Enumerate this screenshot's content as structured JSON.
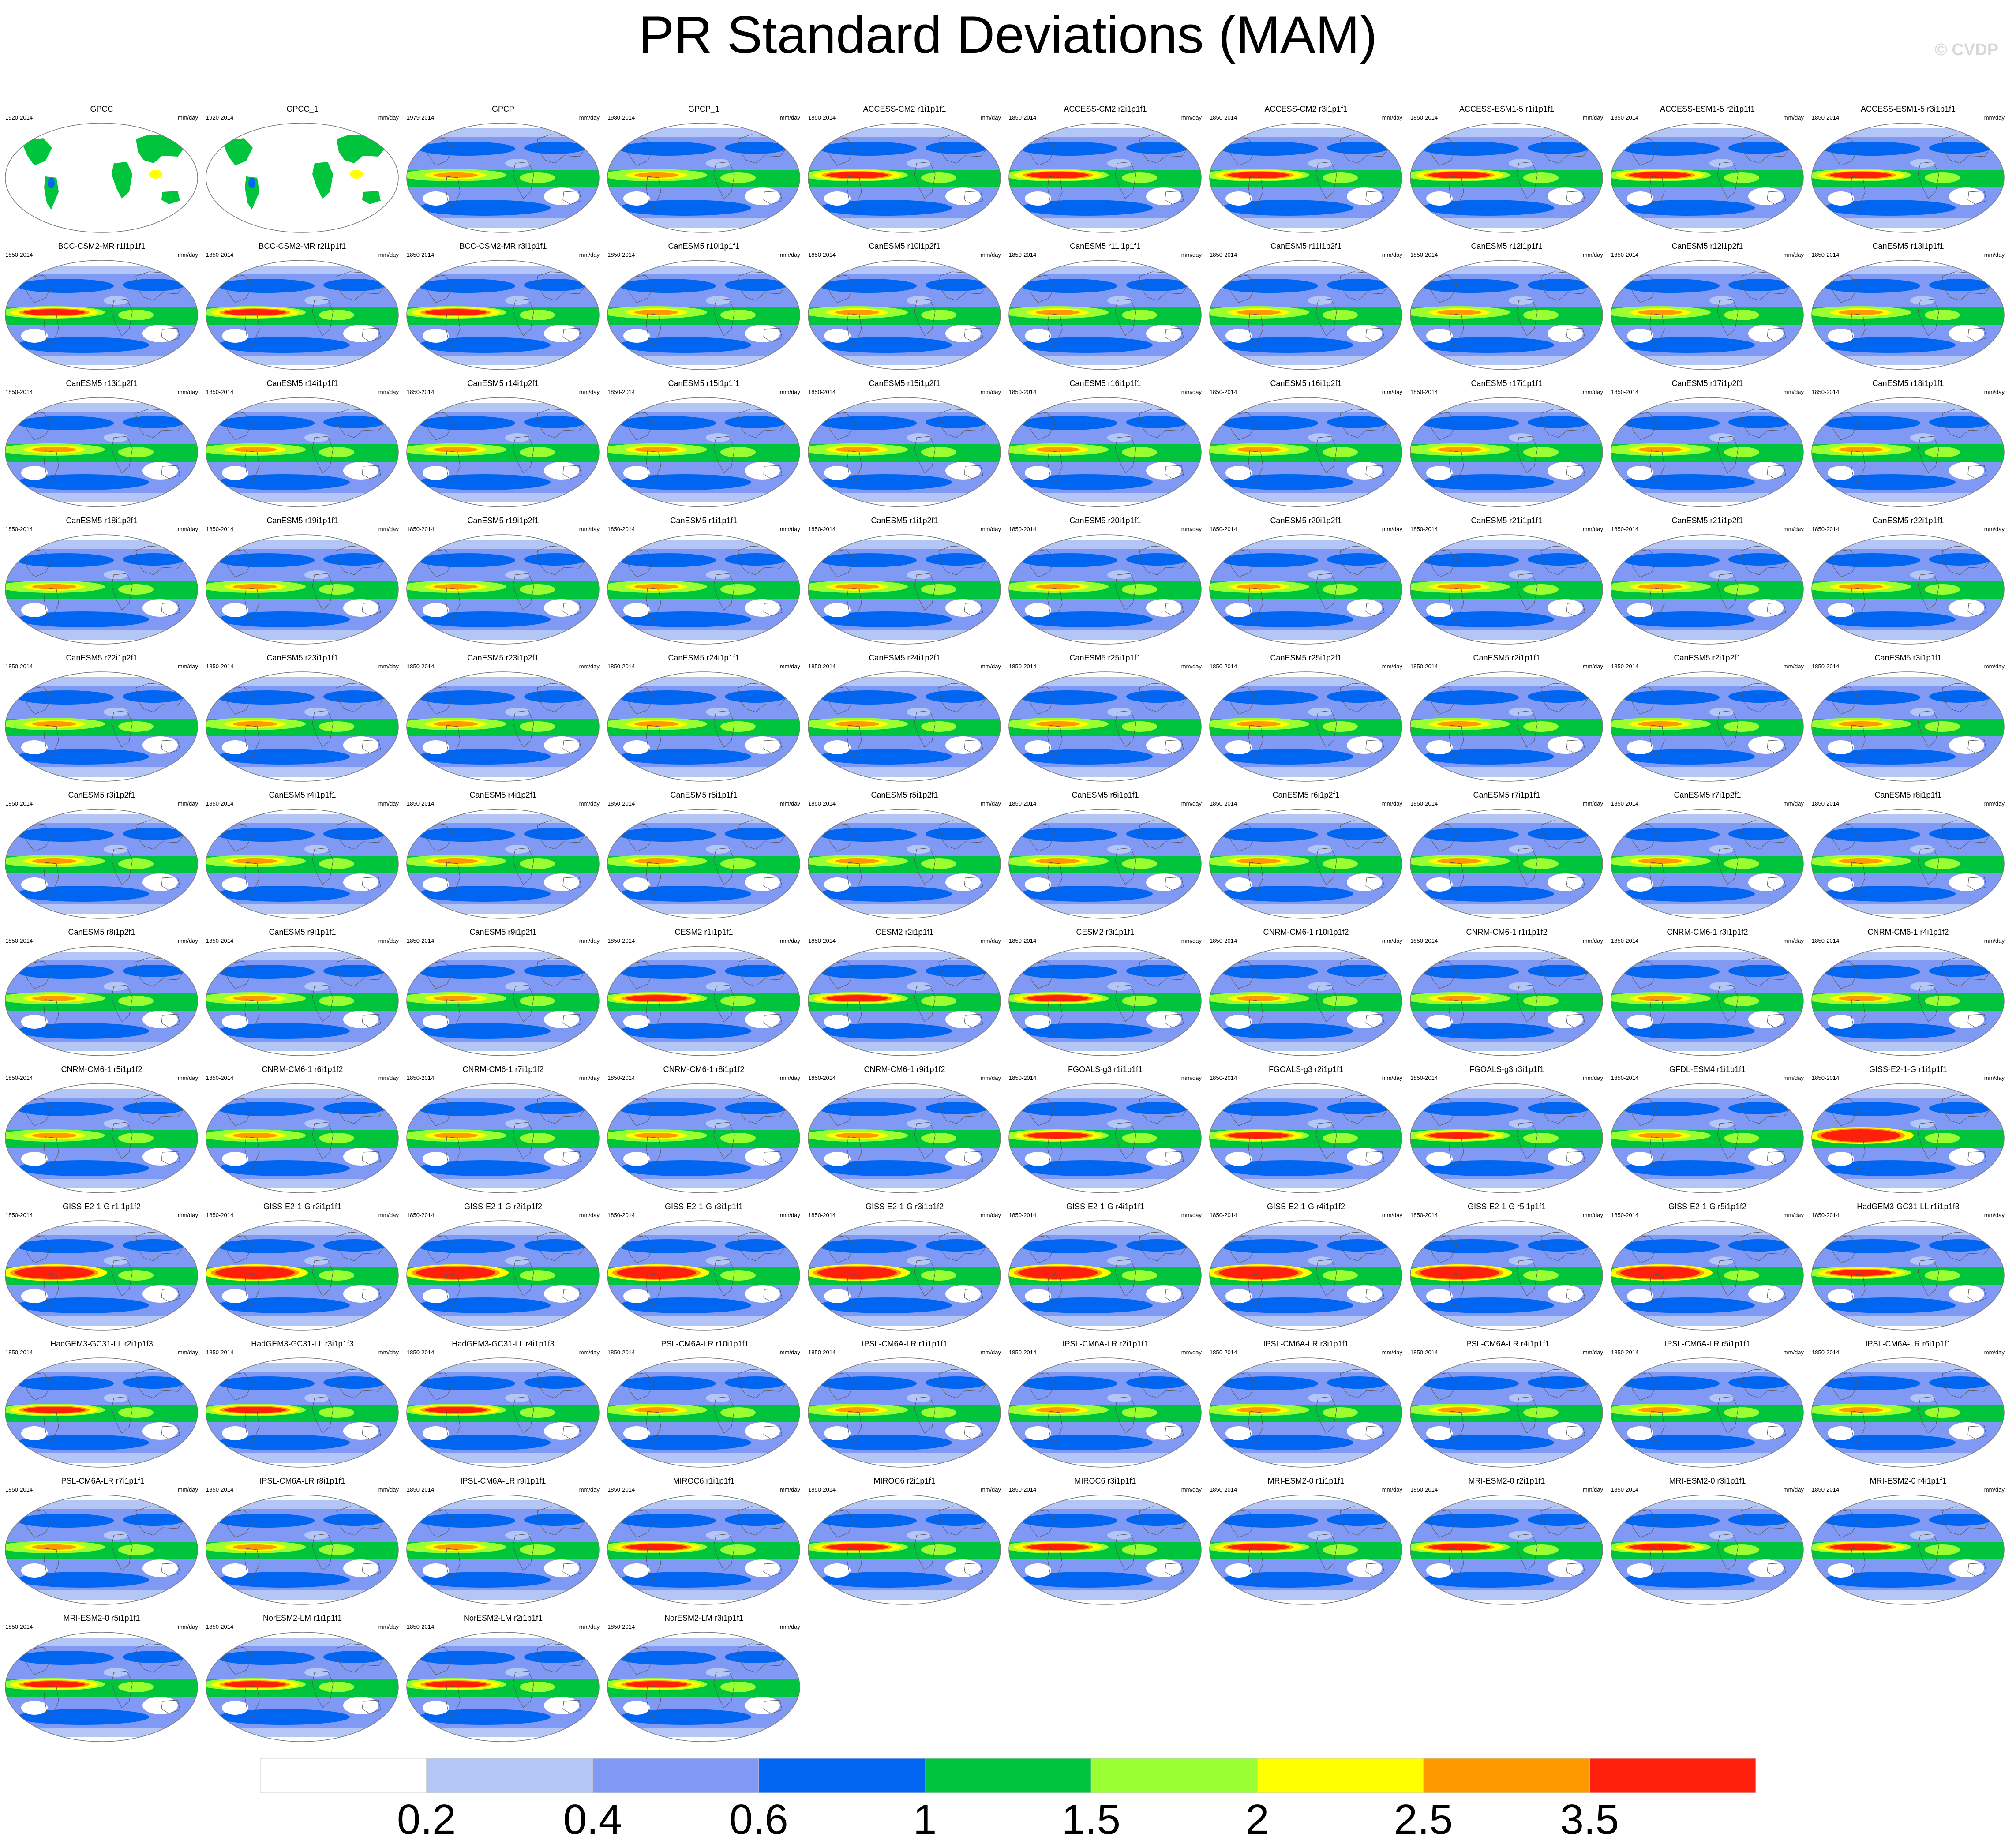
{
  "title": "PR Standard Deviations (MAM)",
  "credit": "© CVDP",
  "units": "mm/day",
  "colorbar": {
    "colors": [
      "#ffffff",
      "#b4c6f5",
      "#7f99f5",
      "#0066f2",
      "#00c43b",
      "#99ff33",
      "#ffff00",
      "#ff9900",
      "#ff1f0a"
    ],
    "ticks": [
      "0.2",
      "0.4",
      "0.6",
      "1",
      "1.5",
      "2",
      "2.5",
      "3.5"
    ]
  },
  "panels": [
    {
      "title": "GPCC",
      "years": "1920-2014",
      "kind": "obs_land"
    },
    {
      "title": "GPCC_1",
      "years": "1920-2014",
      "kind": "obs_land"
    },
    {
      "title": "GPCP",
      "years": "1979-2014",
      "kind": "obs"
    },
    {
      "title": "GPCP_1",
      "years": "1980-2014",
      "kind": "obs"
    },
    {
      "title": "ACCESS-CM2 r1i1p1f1",
      "years": "1850-2014",
      "kind": "model_high"
    },
    {
      "title": "ACCESS-CM2 r2i1p1f1",
      "years": "1850-2014",
      "kind": "model_high"
    },
    {
      "title": "ACCESS-CM2 r3i1p1f1",
      "years": "1850-2014",
      "kind": "model_high"
    },
    {
      "title": "ACCESS-ESM1-5 r1i1p1f1",
      "years": "1850-2014",
      "kind": "model_high"
    },
    {
      "title": "ACCESS-ESM1-5 r2i1p1f1",
      "years": "1850-2014",
      "kind": "model_high"
    },
    {
      "title": "ACCESS-ESM1-5 r3i1p1f1",
      "years": "1850-2014",
      "kind": "model_high"
    },
    {
      "title": "BCC-CSM2-MR r1i1p1f1",
      "years": "1850-2014",
      "kind": "model_high"
    },
    {
      "title": "BCC-CSM2-MR r2i1p1f1",
      "years": "1850-2014",
      "kind": "model_high"
    },
    {
      "title": "BCC-CSM2-MR r3i1p1f1",
      "years": "1850-2014",
      "kind": "model_high"
    },
    {
      "title": "CanESM5 r10i1p1f1",
      "years": "1850-2014",
      "kind": "model"
    },
    {
      "title": "CanESM5 r10i1p2f1",
      "years": "1850-2014",
      "kind": "model"
    },
    {
      "title": "CanESM5 r11i1p1f1",
      "years": "1850-2014",
      "kind": "model"
    },
    {
      "title": "CanESM5 r11i1p2f1",
      "years": "1850-2014",
      "kind": "model"
    },
    {
      "title": "CanESM5 r12i1p1f1",
      "years": "1850-2014",
      "kind": "model"
    },
    {
      "title": "CanESM5 r12i1p2f1",
      "years": "1850-2014",
      "kind": "model"
    },
    {
      "title": "CanESM5 r13i1p1f1",
      "years": "1850-2014",
      "kind": "model"
    },
    {
      "title": "CanESM5 r13i1p2f1",
      "years": "1850-2014",
      "kind": "model"
    },
    {
      "title": "CanESM5 r14i1p1f1",
      "years": "1850-2014",
      "kind": "model"
    },
    {
      "title": "CanESM5 r14i1p2f1",
      "years": "1850-2014",
      "kind": "model"
    },
    {
      "title": "CanESM5 r15i1p1f1",
      "years": "1850-2014",
      "kind": "model"
    },
    {
      "title": "CanESM5 r15i1p2f1",
      "years": "1850-2014",
      "kind": "model"
    },
    {
      "title": "CanESM5 r16i1p1f1",
      "years": "1850-2014",
      "kind": "model"
    },
    {
      "title": "CanESM5 r16i1p2f1",
      "years": "1850-2014",
      "kind": "model"
    },
    {
      "title": "CanESM5 r17i1p1f1",
      "years": "1850-2014",
      "kind": "model"
    },
    {
      "title": "CanESM5 r17i1p2f1",
      "years": "1850-2014",
      "kind": "model"
    },
    {
      "title": "CanESM5 r18i1p1f1",
      "years": "1850-2014",
      "kind": "model"
    },
    {
      "title": "CanESM5 r18i1p2f1",
      "years": "1850-2014",
      "kind": "model"
    },
    {
      "title": "CanESM5 r19i1p1f1",
      "years": "1850-2014",
      "kind": "model"
    },
    {
      "title": "CanESM5 r19i1p2f1",
      "years": "1850-2014",
      "kind": "model"
    },
    {
      "title": "CanESM5 r1i1p1f1",
      "years": "1850-2014",
      "kind": "model"
    },
    {
      "title": "CanESM5 r1i1p2f1",
      "years": "1850-2014",
      "kind": "model"
    },
    {
      "title": "CanESM5 r20i1p1f1",
      "years": "1850-2014",
      "kind": "model"
    },
    {
      "title": "CanESM5 r20i1p2f1",
      "years": "1850-2014",
      "kind": "model"
    },
    {
      "title": "CanESM5 r21i1p1f1",
      "years": "1850-2014",
      "kind": "model"
    },
    {
      "title": "CanESM5 r21i1p2f1",
      "years": "1850-2014",
      "kind": "model"
    },
    {
      "title": "CanESM5 r22i1p1f1",
      "years": "1850-2014",
      "kind": "model"
    },
    {
      "title": "CanESM5 r22i1p2f1",
      "years": "1850-2014",
      "kind": "model"
    },
    {
      "title": "CanESM5 r23i1p1f1",
      "years": "1850-2014",
      "kind": "model"
    },
    {
      "title": "CanESM5 r23i1p2f1",
      "years": "1850-2014",
      "kind": "model"
    },
    {
      "title": "CanESM5 r24i1p1f1",
      "years": "1850-2014",
      "kind": "model"
    },
    {
      "title": "CanESM5 r24i1p2f1",
      "years": "1850-2014",
      "kind": "model"
    },
    {
      "title": "CanESM5 r25i1p1f1",
      "years": "1850-2014",
      "kind": "model"
    },
    {
      "title": "CanESM5 r25i1p2f1",
      "years": "1850-2014",
      "kind": "model"
    },
    {
      "title": "CanESM5 r2i1p1f1",
      "years": "1850-2014",
      "kind": "model"
    },
    {
      "title": "CanESM5 r2i1p2f1",
      "years": "1850-2014",
      "kind": "model"
    },
    {
      "title": "CanESM5 r3i1p1f1",
      "years": "1850-2014",
      "kind": "model"
    },
    {
      "title": "CanESM5 r3i1p2f1",
      "years": "1850-2014",
      "kind": "model"
    },
    {
      "title": "CanESM5 r4i1p1f1",
      "years": "1850-2014",
      "kind": "model"
    },
    {
      "title": "CanESM5 r4i1p2f1",
      "years": "1850-2014",
      "kind": "model"
    },
    {
      "title": "CanESM5 r5i1p1f1",
      "years": "1850-2014",
      "kind": "model"
    },
    {
      "title": "CanESM5 r5i1p2f1",
      "years": "1850-2014",
      "kind": "model"
    },
    {
      "title": "CanESM5 r6i1p1f1",
      "years": "1850-2014",
      "kind": "model"
    },
    {
      "title": "CanESM5 r6i1p2f1",
      "years": "1850-2014",
      "kind": "model"
    },
    {
      "title": "CanESM5 r7i1p1f1",
      "years": "1850-2014",
      "kind": "model"
    },
    {
      "title": "CanESM5 r7i1p2f1",
      "years": "1850-2014",
      "kind": "model"
    },
    {
      "title": "CanESM5 r8i1p1f1",
      "years": "1850-2014",
      "kind": "model"
    },
    {
      "title": "CanESM5 r8i1p2f1",
      "years": "1850-2014",
      "kind": "model"
    },
    {
      "title": "CanESM5 r9i1p1f1",
      "years": "1850-2014",
      "kind": "model"
    },
    {
      "title": "CanESM5 r9i1p2f1",
      "years": "1850-2014",
      "kind": "model"
    },
    {
      "title": "CESM2 r1i1p1f1",
      "years": "1850-2014",
      "kind": "model_high"
    },
    {
      "title": "CESM2 r2i1p1f1",
      "years": "1850-2014",
      "kind": "model_high"
    },
    {
      "title": "CESM2 r3i1p1f1",
      "years": "1850-2014",
      "kind": "model_high"
    },
    {
      "title": "CNRM-CM6-1 r10i1p1f2",
      "years": "1850-2014",
      "kind": "model"
    },
    {
      "title": "CNRM-CM6-1 r1i1p1f2",
      "years": "1850-2014",
      "kind": "model"
    },
    {
      "title": "CNRM-CM6-1 r3i1p1f2",
      "years": "1850-2014",
      "kind": "model"
    },
    {
      "title": "CNRM-CM6-1 r4i1p1f2",
      "years": "1850-2014",
      "kind": "model"
    },
    {
      "title": "CNRM-CM6-1 r5i1p1f2",
      "years": "1850-2014",
      "kind": "model"
    },
    {
      "title": "CNRM-CM6-1 r6i1p1f2",
      "years": "1850-2014",
      "kind": "model"
    },
    {
      "title": "CNRM-CM6-1 r7i1p1f2",
      "years": "1850-2014",
      "kind": "model"
    },
    {
      "title": "CNRM-CM6-1 r8i1p1f2",
      "years": "1850-2014",
      "kind": "model"
    },
    {
      "title": "CNRM-CM6-1 r9i1p1f2",
      "years": "1850-2014",
      "kind": "model"
    },
    {
      "title": "FGOALS-g3 r1i1p1f1",
      "years": "1850-2014",
      "kind": "model_high"
    },
    {
      "title": "FGOALS-g3 r2i1p1f1",
      "years": "1850-2014",
      "kind": "model_high"
    },
    {
      "title": "FGOALS-g3 r3i1p1f1",
      "years": "1850-2014",
      "kind": "model_high"
    },
    {
      "title": "GFDL-ESM4 r1i1p1f1",
      "years": "1850-2014",
      "kind": "model"
    },
    {
      "title": "GISS-E2-1-G r1i1p1f1",
      "years": "1850-2014",
      "kind": "model_very_high"
    },
    {
      "title": "GISS-E2-1-G r1i1p1f2",
      "years": "1850-2014",
      "kind": "model_very_high"
    },
    {
      "title": "GISS-E2-1-G r2i1p1f1",
      "years": "1850-2014",
      "kind": "model_very_high"
    },
    {
      "title": "GISS-E2-1-G r2i1p1f2",
      "years": "1850-2014",
      "kind": "model_very_high"
    },
    {
      "title": "GISS-E2-1-G r3i1p1f1",
      "years": "1850-2014",
      "kind": "model_very_high"
    },
    {
      "title": "GISS-E2-1-G r3i1p1f2",
      "years": "1850-2014",
      "kind": "model_very_high"
    },
    {
      "title": "GISS-E2-1-G r4i1p1f1",
      "years": "1850-2014",
      "kind": "model_very_high"
    },
    {
      "title": "GISS-E2-1-G r4i1p1f2",
      "years": "1850-2014",
      "kind": "model_very_high"
    },
    {
      "title": "GISS-E2-1-G r5i1p1f1",
      "years": "1850-2014",
      "kind": "model_very_high"
    },
    {
      "title": "GISS-E2-1-G r5i1p1f2",
      "years": "1850-2014",
      "kind": "model_very_high"
    },
    {
      "title": "HadGEM3-GC31-LL r1i1p1f3",
      "years": "1850-2014",
      "kind": "model_high"
    },
    {
      "title": "HadGEM3-GC31-LL r2i1p1f3",
      "years": "1850-2014",
      "kind": "model_high"
    },
    {
      "title": "HadGEM3-GC31-LL r3i1p1f3",
      "years": "1850-2014",
      "kind": "model_high"
    },
    {
      "title": "HadGEM3-GC31-LL r4i1p1f3",
      "years": "1850-2014",
      "kind": "model_high"
    },
    {
      "title": "IPSL-CM6A-LR r10i1p1f1",
      "years": "1850-2014",
      "kind": "model"
    },
    {
      "title": "IPSL-CM6A-LR r1i1p1f1",
      "years": "1850-2014",
      "kind": "model"
    },
    {
      "title": "IPSL-CM6A-LR r2i1p1f1",
      "years": "1850-2014",
      "kind": "model"
    },
    {
      "title": "IPSL-CM6A-LR r3i1p1f1",
      "years": "1850-2014",
      "kind": "model"
    },
    {
      "title": "IPSL-CM6A-LR r4i1p1f1",
      "years": "1850-2014",
      "kind": "model"
    },
    {
      "title": "IPSL-CM6A-LR r5i1p1f1",
      "years": "1850-2014",
      "kind": "model"
    },
    {
      "title": "IPSL-CM6A-LR r6i1p1f1",
      "years": "1850-2014",
      "kind": "model"
    },
    {
      "title": "IPSL-CM6A-LR r7i1p1f1",
      "years": "1850-2014",
      "kind": "model"
    },
    {
      "title": "IPSL-CM6A-LR r8i1p1f1",
      "years": "1850-2014",
      "kind": "model"
    },
    {
      "title": "IPSL-CM6A-LR r9i1p1f1",
      "years": "1850-2014",
      "kind": "model"
    },
    {
      "title": "MIROC6 r1i1p1f1",
      "years": "1850-2014",
      "kind": "model_high"
    },
    {
      "title": "MIROC6 r2i1p1f1",
      "years": "1850-2014",
      "kind": "model_high"
    },
    {
      "title": "MIROC6 r3i1p1f1",
      "years": "1850-2014",
      "kind": "model_high"
    },
    {
      "title": "MRI-ESM2-0 r1i1p1f1",
      "years": "1850-2014",
      "kind": "model_high"
    },
    {
      "title": "MRI-ESM2-0 r2i1p1f1",
      "years": "1850-2014",
      "kind": "model_high"
    },
    {
      "title": "MRI-ESM2-0 r3i1p1f1",
      "years": "1850-2014",
      "kind": "model_high"
    },
    {
      "title": "MRI-ESM2-0 r4i1p1f1",
      "years": "1850-2014",
      "kind": "model_high"
    },
    {
      "title": "MRI-ESM2-0 r5i1p1f1",
      "years": "1850-2014",
      "kind": "model_high"
    },
    {
      "title": "NorESM2-LM r1i1p1f1",
      "years": "1850-2014",
      "kind": "model_high"
    },
    {
      "title": "NorESM2-LM r2i1p1f1",
      "years": "1850-2014",
      "kind": "model_high"
    },
    {
      "title": "NorESM2-LM r3i1p1f1",
      "years": "1850-2014",
      "kind": "model_high"
    }
  ]
}
